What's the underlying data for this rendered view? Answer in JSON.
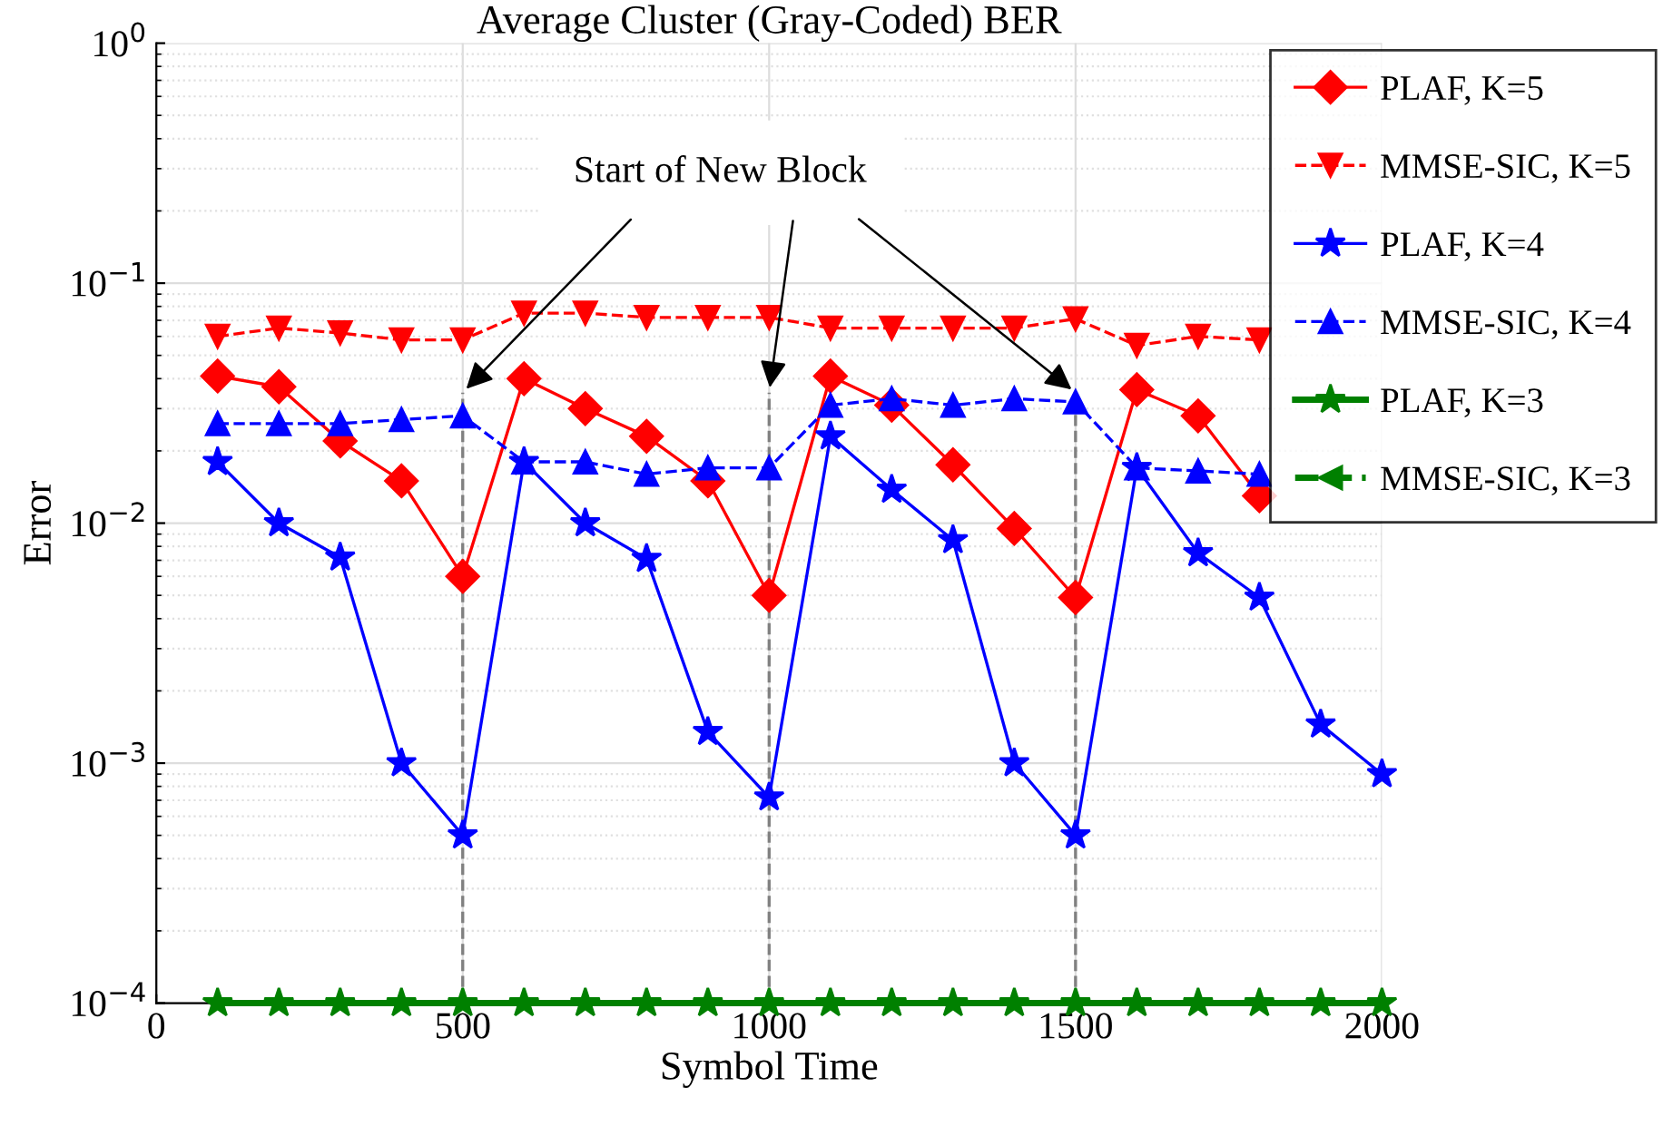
{
  "chart_data": {
    "type": "line",
    "title": "Average Cluster (Gray-Coded) BER",
    "xlabel": "Symbol Time",
    "ylabel": "Error",
    "x": [
      100,
      200,
      300,
      400,
      500,
      600,
      700,
      800,
      900,
      1000,
      1100,
      1200,
      1300,
      1400,
      1500,
      1600,
      1700,
      1800,
      1900,
      2000
    ],
    "series": [
      {
        "name": "PLAF, K=5",
        "color": "#ff0000",
        "marker": "diamond",
        "line_style": "solid",
        "values": [
          0.041,
          0.037,
          0.022,
          0.015,
          0.006,
          0.04,
          0.03,
          0.023,
          0.015,
          0.005,
          0.041,
          0.031,
          0.0175,
          0.0095,
          0.0049,
          0.036,
          0.028,
          0.013,
          null,
          null
        ]
      },
      {
        "name": "MMSE-SIC, K=5",
        "color": "#ff0000",
        "marker": "triangle_down",
        "line_style": "dashed",
        "values": [
          0.06,
          0.065,
          0.062,
          0.058,
          0.058,
          0.075,
          0.075,
          0.072,
          0.072,
          0.072,
          0.065,
          0.065,
          0.065,
          0.065,
          0.071,
          0.055,
          0.06,
          0.058,
          null,
          null
        ]
      },
      {
        "name": "PLAF, K=4",
        "color": "#0000ff",
        "marker": "star",
        "line_style": "solid",
        "values": [
          0.018,
          0.01,
          0.0072,
          0.001,
          0.0005,
          0.018,
          0.01,
          0.0071,
          0.00135,
          0.00072,
          0.023,
          0.0138,
          0.0085,
          0.001,
          0.0005,
          0.017,
          0.0075,
          0.0049,
          0.00145,
          0.0009
        ]
      },
      {
        "name": "MMSE-SIC, K=4",
        "color": "#0000ff",
        "marker": "triangle",
        "line_style": "dashed",
        "values": [
          0.026,
          0.026,
          0.026,
          0.027,
          0.028,
          0.018,
          0.018,
          0.016,
          0.017,
          0.017,
          0.031,
          0.033,
          0.031,
          0.033,
          0.032,
          0.017,
          0.0165,
          0.016,
          null,
          null
        ]
      },
      {
        "name": "PLAF, K=3",
        "color": "#008000",
        "marker": "star",
        "line_style": "solid",
        "values": [
          0.0001,
          0.0001,
          0.0001,
          0.0001,
          0.0001,
          0.0001,
          0.0001,
          0.0001,
          0.0001,
          0.0001,
          0.0001,
          0.0001,
          0.0001,
          0.0001,
          0.0001,
          0.0001,
          0.0001,
          0.0001,
          0.0001,
          0.0001
        ]
      },
      {
        "name": "MMSE-SIC, K=3",
        "color": "#008000",
        "marker": "triangle_left",
        "line_style": "dashed",
        "values": [
          null,
          null,
          null,
          null,
          null,
          null,
          null,
          null,
          null,
          null,
          null,
          null,
          null,
          null,
          null,
          null,
          null,
          null,
          null,
          null
        ]
      }
    ],
    "log": "y",
    "xlim": [
      0,
      2000
    ],
    "xticks": [
      0,
      500,
      1000,
      1500,
      2000
    ],
    "ylim": [
      0.0001,
      1
    ],
    "yticks": [
      {
        "value": 0.0001,
        "label": "10$^{−4}$"
      },
      {
        "value": 0.001,
        "label": "10$^{−3}$"
      },
      {
        "value": 0.01,
        "label": "10$^{−2}$"
      },
      {
        "value": 0.1,
        "label": "10$^{−1}$"
      },
      {
        "value": 1,
        "label": "10$^{0}$"
      }
    ],
    "ref_lines": [
      {
        "axis": "x",
        "value": 500,
        "color": "#808080",
        "line_style": "dashed"
      },
      {
        "axis": "x",
        "value": 1000,
        "color": "#808080",
        "line_style": "dashed"
      },
      {
        "axis": "x",
        "value": 1500,
        "color": "#808080",
        "line_style": "dashed"
      }
    ],
    "annotations": [
      {
        "text": "Start of New Block",
        "x": 1000,
        "y": 0.035
      }
    ],
    "grid": true,
    "legend": "top right"
  }
}
